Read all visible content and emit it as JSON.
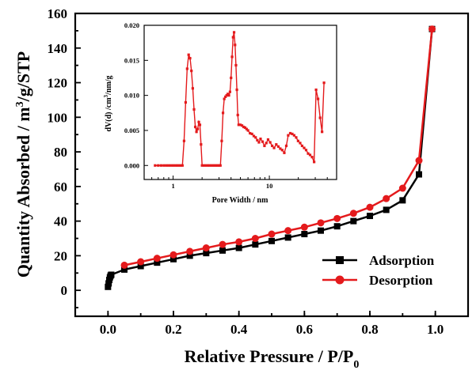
{
  "chart_data": [
    {
      "type": "line",
      "title": "",
      "xlabel": "Relative Pressure / P/P",
      "xlabel_sub": "0",
      "ylabel": "Quantity Absorbed / m",
      "ylabel_sup": "3",
      "ylabel_tail": "/g/STP",
      "xlim": [
        -0.1,
        1.1
      ],
      "ylim": [
        -15,
        160
      ],
      "xticks": [
        "0.0",
        "0.2",
        "0.4",
        "0.6",
        "0.8",
        "1.0"
      ],
      "yticks": [
        "0",
        "20",
        "40",
        "60",
        "80",
        "100",
        "120",
        "140",
        "160"
      ],
      "legend_position": "lower-right",
      "series": [
        {
          "name": "Adsorption",
          "color": "#000000",
          "marker": "square",
          "x": [
            0.0,
            0.002,
            0.004,
            0.006,
            0.008,
            0.01,
            0.05,
            0.1,
            0.15,
            0.2,
            0.25,
            0.3,
            0.35,
            0.4,
            0.45,
            0.5,
            0.55,
            0.6,
            0.65,
            0.7,
            0.75,
            0.8,
            0.85,
            0.9,
            0.95,
            0.99
          ],
          "y": [
            2,
            4,
            6,
            7.5,
            8.5,
            9,
            12,
            14,
            16,
            18,
            20,
            21.5,
            23,
            24.5,
            26.5,
            28.5,
            30.5,
            32.5,
            34.5,
            37,
            40,
            43,
            46.5,
            52,
            67,
            151
          ]
        },
        {
          "name": "Desorption",
          "color": "#e41a1c",
          "marker": "circle",
          "x": [
            0.05,
            0.1,
            0.15,
            0.2,
            0.25,
            0.3,
            0.35,
            0.4,
            0.45,
            0.5,
            0.55,
            0.6,
            0.65,
            0.7,
            0.75,
            0.8,
            0.85,
            0.9,
            0.95,
            0.99
          ],
          "y": [
            14.5,
            16.5,
            18.5,
            20.5,
            22.5,
            24.5,
            26.5,
            28,
            30,
            32.5,
            34.5,
            36.5,
            39,
            41.5,
            44.5,
            48,
            53,
            59,
            75,
            151
          ]
        }
      ]
    },
    {
      "type": "line",
      "title": "",
      "xlabel": "Pore Width / nm",
      "ylabel": "dV(d) /cm",
      "ylabel_sup": "3",
      "ylabel_tail": "/nm/g",
      "xscale": "log",
      "xlim": [
        0.5,
        50
      ],
      "ylim": [
        -0.002,
        0.02
      ],
      "xticks": [
        "1",
        "10"
      ],
      "yticks": [
        "0.000",
        "0.005",
        "0.010",
        "0.015",
        "0.020"
      ],
      "series": [
        {
          "color": "#e41a1c",
          "marker": "square",
          "x": [
            0.65,
            0.7,
            0.75,
            0.8,
            0.85,
            0.9,
            0.95,
            1.0,
            1.05,
            1.1,
            1.15,
            1.2,
            1.25,
            1.3,
            1.35,
            1.4,
            1.45,
            1.5,
            1.55,
            1.6,
            1.65,
            1.7,
            1.75,
            1.8,
            1.85,
            1.9,
            1.95,
            2.0,
            2.1,
            2.2,
            2.3,
            2.4,
            2.5,
            2.6,
            2.7,
            2.8,
            2.9,
            3.0,
            3.1,
            3.2,
            3.3,
            3.4,
            3.5,
            3.6,
            3.7,
            3.8,
            3.9,
            4.0,
            4.1,
            4.2,
            4.3,
            4.4,
            4.5,
            4.6,
            4.7,
            4.8,
            5.0,
            5.2,
            5.4,
            5.6,
            5.8,
            6.0,
            6.3,
            6.6,
            6.9,
            7.2,
            7.5,
            7.8,
            8.1,
            8.5,
            8.9,
            9.3,
            9.7,
            10.2,
            10.7,
            11.2,
            11.8,
            12.4,
            13.0,
            13.6,
            14.3,
            15.0,
            15.7,
            16.5,
            17.3,
            18.1,
            19.0,
            19.9,
            20.9,
            21.9,
            23.0,
            24.1,
            25.3,
            26.5,
            27.8,
            29.2,
            30.6,
            32.1,
            33.7,
            35.3,
            37.0
          ],
          "y": [
            0,
            0,
            0,
            0,
            0,
            0,
            0,
            0,
            0,
            0,
            0,
            0,
            0,
            0.0035,
            0.009,
            0.0138,
            0.0158,
            0.0153,
            0.0135,
            0.011,
            0.008,
            0.0055,
            0.0048,
            0.0052,
            0.0062,
            0.0058,
            0.003,
            0,
            0,
            0,
            0,
            0,
            0,
            0,
            0,
            0,
            0,
            0,
            0,
            0.0035,
            0.0075,
            0.0095,
            0.0098,
            0.01,
            0.0102,
            0.01,
            0.0105,
            0.0125,
            0.0155,
            0.0183,
            0.019,
            0.0172,
            0.0143,
            0.0108,
            0.0072,
            0.0058,
            0.0058,
            0.0057,
            0.0055,
            0.0054,
            0.0052,
            0.005,
            0.0046,
            0.0045,
            0.0042,
            0.004,
            0.0036,
            0.0033,
            0.0038,
            0.0034,
            0.0028,
            0.0032,
            0.0037,
            0.0033,
            0.0028,
            0.0025,
            0.003,
            0.0027,
            0.0024,
            0.0022,
            0.0018,
            0.0028,
            0.0043,
            0.0046,
            0.0045,
            0.0043,
            0.004,
            0.0035,
            0.0032,
            0.0028,
            0.0025,
            0.0022,
            0.0017,
            0.0015,
            0.0012,
            0.0005,
            0.0108,
            0.0095,
            0.0068,
            0.0048,
            0.0118
          ]
        }
      ]
    }
  ]
}
